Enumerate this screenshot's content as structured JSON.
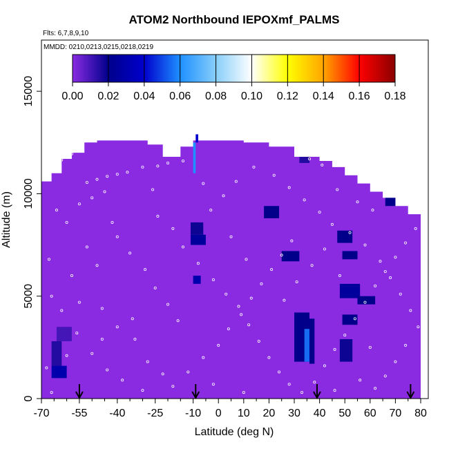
{
  "chart_data": {
    "type": "heatmap",
    "title": "ATOM2 Northbound IEPOXmf_PALMS",
    "subtitle_flights": "Flts: 6,7,8,9,10",
    "subtitle_dates": "MMDD: 0210,0213,0215,0218,0219",
    "xlabel": "Latitude (deg N)",
    "ylabel": "Altitude (m)",
    "xlim": [
      -70,
      83
    ],
    "ylim": [
      0,
      17500
    ],
    "x_ticks": [
      -70,
      -55,
      -40,
      -25,
      -10,
      0,
      10,
      20,
      30,
      40,
      50,
      60,
      70,
      80
    ],
    "x_tick_labels": [
      "-70",
      "-55",
      "-40",
      "-25",
      "-10",
      "0",
      "10",
      "20",
      "30",
      "40",
      "50",
      "60",
      "70",
      "80"
    ],
    "y_ticks": [
      0,
      5000,
      10000,
      15000
    ],
    "y_tick_labels": [
      "0",
      "5000",
      "10000",
      "15000"
    ],
    "colorbar": {
      "range": [
        0,
        0.18
      ],
      "ticks": [
        0.0,
        0.02,
        0.04,
        0.06,
        0.08,
        0.1,
        0.12,
        0.14,
        0.16,
        0.18
      ],
      "tick_labels": [
        "0.00",
        "0.02",
        "0.04",
        "0.06",
        "0.08",
        "0.10",
        "0.12",
        "0.14",
        "0.16",
        "0.18"
      ],
      "colors": [
        "#8a2be2",
        "#00008b",
        "#0000cd",
        "#1e90ff",
        "#87cefa",
        "#ffffff",
        "#ffff00",
        "#ffa500",
        "#ff0000",
        "#8b0000"
      ]
    },
    "background_value": 0.005,
    "background_color": "#8a2be2",
    "coverage_profile": [
      {
        "lat": -70,
        "alt_top": 10600
      },
      {
        "lat": -66,
        "alt_top": 11000
      },
      {
        "lat": -62,
        "alt_top": 11700
      },
      {
        "lat": -58,
        "alt_top": 12000
      },
      {
        "lat": -53,
        "alt_top": 12500
      },
      {
        "lat": -48,
        "alt_top": 12600
      },
      {
        "lat": -40,
        "alt_top": 12600
      },
      {
        "lat": -33,
        "alt_top": 12600
      },
      {
        "lat": -28,
        "alt_top": 12400
      },
      {
        "lat": -22,
        "alt_top": 11800
      },
      {
        "lat": -15,
        "alt_top": 12300
      },
      {
        "lat": -10,
        "alt_top": 12600
      },
      {
        "lat": -5,
        "alt_top": 12600
      },
      {
        "lat": 0,
        "alt_top": 12600
      },
      {
        "lat": 10,
        "alt_top": 12500
      },
      {
        "lat": 20,
        "alt_top": 12300
      },
      {
        "lat": 30,
        "alt_top": 11800
      },
      {
        "lat": 40,
        "alt_top": 11600
      },
      {
        "lat": 45,
        "alt_top": 11300
      },
      {
        "lat": 50,
        "alt_top": 10900
      },
      {
        "lat": 55,
        "alt_top": 10500
      },
      {
        "lat": 60,
        "alt_top": 10100
      },
      {
        "lat": 65,
        "alt_top": 9800
      },
      {
        "lat": 70,
        "alt_top": 9400
      },
      {
        "lat": 75,
        "alt_top": 9000
      },
      {
        "lat": 80,
        "alt_top": 8600
      },
      {
        "lat": 80,
        "alt_top": 0
      }
    ],
    "cells": [
      {
        "lat0": -66,
        "lat1": -60,
        "alt0": 1000,
        "alt1": 1600,
        "value": 0.03
      },
      {
        "lat0": -66,
        "lat1": -62,
        "alt0": 1600,
        "alt1": 2800,
        "value": 0.015
      },
      {
        "lat0": -64,
        "lat1": -58,
        "alt0": 2800,
        "alt1": 3500,
        "value": 0.01
      },
      {
        "lat0": -11,
        "lat1": -5,
        "alt0": 7500,
        "alt1": 8000,
        "value": 0.025
      },
      {
        "lat0": -11,
        "lat1": -6,
        "alt0": 8000,
        "alt1": 8600,
        "value": 0.018
      },
      {
        "lat0": -10,
        "lat1": -7,
        "alt0": 5600,
        "alt1": 6000,
        "value": 0.03
      },
      {
        "lat0": 18,
        "lat1": 24,
        "alt0": 8800,
        "alt1": 9400,
        "value": 0.02
      },
      {
        "lat0": 25,
        "lat1": 32,
        "alt0": 6700,
        "alt1": 7200,
        "value": 0.02
      },
      {
        "lat0": 30,
        "lat1": 36,
        "alt0": 1800,
        "alt1": 4200,
        "value": 0.02
      },
      {
        "lat0": 34,
        "lat1": 36,
        "alt0": 1800,
        "alt1": 3400,
        "value": 0.055
      },
      {
        "lat0": 36,
        "lat1": 38,
        "alt0": 1700,
        "alt1": 3900,
        "value": 0.02
      },
      {
        "lat0": 47,
        "lat1": 53,
        "alt0": 7600,
        "alt1": 8200,
        "value": 0.02
      },
      {
        "lat0": 49,
        "lat1": 55,
        "alt0": 6800,
        "alt1": 7200,
        "value": 0.02
      },
      {
        "lat0": 48,
        "lat1": 56,
        "alt0": 4900,
        "alt1": 5600,
        "value": 0.025
      },
      {
        "lat0": 55,
        "lat1": 62,
        "alt0": 4600,
        "alt1": 5000,
        "value": 0.02
      },
      {
        "lat0": 49,
        "lat1": 55,
        "alt0": 3600,
        "alt1": 4100,
        "value": 0.02
      },
      {
        "lat0": 48,
        "lat1": 53,
        "alt0": 1800,
        "alt1": 2900,
        "value": 0.018
      },
      {
        "lat0": 66,
        "lat1": 70,
        "alt0": 9400,
        "alt1": 9800,
        "value": 0.02
      },
      {
        "lat0": 32,
        "lat1": 36,
        "alt0": 11500,
        "alt1": 11800,
        "value": 0.015
      },
      {
        "lat0": -10,
        "lat1": -9,
        "alt0": 11000,
        "alt1": 12500,
        "value": 0.06
      },
      {
        "lat0": -9,
        "lat1": -8,
        "alt0": 12500,
        "alt1": 12900,
        "value": 0.04
      }
    ],
    "flight_arrows_lat": [
      -55,
      -9,
      39,
      76
    ],
    "sample_points": [
      [
        -62,
        11650
      ],
      [
        -58,
        11950
      ],
      [
        -52,
        10550
      ],
      [
        -48,
        10700
      ],
      [
        -44,
        10850
      ],
      [
        -40,
        10950
      ],
      [
        -36,
        11050
      ],
      [
        -30,
        11300
      ],
      [
        -24,
        11350
      ],
      [
        -20,
        11500
      ],
      [
        -14,
        11600
      ],
      [
        -55,
        9500
      ],
      [
        -50,
        9800
      ],
      [
        -45,
        10100
      ],
      [
        -64,
        9200
      ],
      [
        -60,
        8600
      ],
      [
        -67,
        6800
      ],
      [
        -58,
        6000
      ],
      [
        -55,
        4700
      ],
      [
        -46,
        4400
      ],
      [
        -40,
        3500
      ],
      [
        -33,
        2900
      ],
      [
        -28,
        1800
      ],
      [
        -22,
        1200
      ],
      [
        -18,
        600
      ],
      [
        -12,
        1300
      ],
      [
        -6,
        2000
      ],
      [
        0,
        2600
      ],
      [
        4,
        3400
      ],
      [
        9,
        4100
      ],
      [
        13,
        4900
      ],
      [
        17,
        5600
      ],
      [
        21,
        6300
      ],
      [
        25,
        7000
      ],
      [
        29,
        7700
      ],
      [
        -66,
        5000
      ],
      [
        -62,
        4300
      ],
      [
        -56,
        3200
      ],
      [
        -50,
        2200
      ],
      [
        -44,
        1400
      ],
      [
        -38,
        900
      ],
      [
        -30,
        400
      ],
      [
        -24,
        8900
      ],
      [
        -18,
        8300
      ],
      [
        -14,
        7400
      ],
      [
        -8,
        6600
      ],
      [
        -2,
        5800
      ],
      [
        3,
        5100
      ],
      [
        8,
        4500
      ],
      [
        12,
        3600
      ],
      [
        16,
        2800
      ],
      [
        20,
        2000
      ],
      [
        24,
        1300
      ],
      [
        28,
        700
      ],
      [
        33,
        300
      ],
      [
        38,
        800
      ],
      [
        42,
        1600
      ],
      [
        46,
        2400
      ],
      [
        50,
        3100
      ],
      [
        54,
        3900
      ],
      [
        58,
        4700
      ],
      [
        62,
        5500
      ],
      [
        66,
        6200
      ],
      [
        70,
        6900
      ],
      [
        74,
        7600
      ],
      [
        78,
        8300
      ],
      [
        -40,
        7900
      ],
      [
        -35,
        7100
      ],
      [
        -29,
        6300
      ],
      [
        -25,
        5400
      ],
      [
        -20,
        4600
      ],
      [
        -16,
        3800
      ],
      [
        -3,
        9200
      ],
      [
        2,
        9900
      ],
      [
        7,
        10600
      ],
      [
        14,
        11300
      ],
      [
        22,
        10900
      ],
      [
        28,
        10300
      ],
      [
        34,
        9700
      ],
      [
        40,
        9100
      ],
      [
        45,
        8500
      ],
      [
        52,
        8100
      ],
      [
        58,
        7500
      ],
      [
        64,
        6700
      ],
      [
        68,
        5900
      ],
      [
        72,
        5100
      ],
      [
        76,
        4300
      ],
      [
        79,
        3500
      ],
      [
        74,
        2600
      ],
      [
        70,
        1800
      ],
      [
        66,
        1100
      ],
      [
        62,
        500
      ],
      [
        56,
        900
      ],
      [
        46,
        400
      ],
      [
        10,
        300
      ],
      [
        -2,
        700
      ],
      [
        -34,
        3900
      ],
      [
        -48,
        6500
      ],
      [
        -52,
        7400
      ],
      [
        -42,
        8600
      ],
      [
        -26,
        10200
      ],
      [
        -6,
        10500
      ],
      [
        5,
        7900
      ],
      [
        11,
        6800
      ],
      [
        26,
        4800
      ],
      [
        31,
        5700
      ],
      [
        37,
        6500
      ],
      [
        42,
        7300
      ],
      [
        48,
        6000
      ],
      [
        60,
        2500
      ],
      [
        36,
        11700
      ],
      [
        41,
        11400
      ],
      [
        47,
        10200
      ],
      [
        55,
        9600
      ],
      [
        61,
        9200
      ],
      [
        -46,
        2900
      ],
      [
        -60,
        2100
      ],
      [
        -68,
        1500
      ],
      [
        -66,
        300
      ]
    ]
  }
}
